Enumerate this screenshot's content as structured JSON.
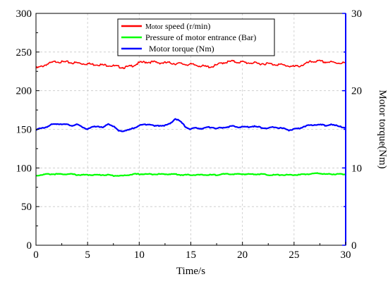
{
  "chart_data": {
    "type": "line",
    "title": "",
    "xlabel": "Time/s",
    "ylabel": "",
    "y2label": "Motor torque(Nm)",
    "xlim": [
      0,
      30
    ],
    "ylim": [
      0,
      300
    ],
    "y2lim": [
      0,
      30
    ],
    "x_ticks": [
      0,
      5,
      10,
      15,
      20,
      25,
      30
    ],
    "y_ticks": [
      0,
      50,
      100,
      150,
      200,
      250,
      300
    ],
    "y2_ticks": [
      0,
      10,
      20,
      30
    ],
    "grid": true,
    "legend_position": "top-center",
    "series": [
      {
        "legend_small": "Motor",
        "legend_main": " speed (r/min)",
        "color": "#ff0000",
        "axis": "left",
        "x": [
          0,
          0.5,
          1,
          1.5,
          2,
          2.5,
          3,
          3.5,
          4,
          4.5,
          5,
          5.5,
          6,
          6.5,
          7,
          7.5,
          8,
          8.5,
          9,
          9.5,
          10,
          10.5,
          11,
          11.5,
          12,
          12.5,
          13,
          13.5,
          14,
          14.5,
          15,
          15.5,
          16,
          16.5,
          17,
          17.5,
          18,
          18.5,
          19,
          19.5,
          20,
          20.5,
          21,
          21.5,
          22,
          22.5,
          23,
          23.5,
          24,
          24.5,
          25,
          25.5,
          26,
          26.5,
          27,
          27.5,
          28,
          28.5,
          29,
          29.5,
          30
        ],
        "values": [
          229,
          231,
          234,
          236,
          238,
          237,
          237,
          236,
          236,
          235,
          235,
          234,
          234,
          233,
          233,
          232,
          231,
          230,
          231,
          233,
          236,
          237,
          237,
          237,
          236,
          236,
          236,
          235,
          235,
          234,
          234,
          233,
          232,
          231,
          231,
          233,
          236,
          237,
          238,
          237,
          237,
          236,
          236,
          235,
          235,
          235,
          234,
          234,
          233,
          232,
          231,
          232,
          234,
          237,
          238,
          238,
          237,
          237,
          236,
          236,
          236
        ]
      },
      {
        "legend_small": "",
        "legend_main": "Pressure of motor entrance (Bar)",
        "color": "#00ff00",
        "axis": "left",
        "x": [
          0,
          0.5,
          1,
          1.5,
          2,
          2.5,
          3,
          3.5,
          4,
          4.5,
          5,
          5.5,
          6,
          6.5,
          7,
          7.5,
          8,
          8.5,
          9,
          9.5,
          10,
          10.5,
          11,
          11.5,
          12,
          12.5,
          13,
          13.5,
          14,
          14.5,
          15,
          15.5,
          16,
          16.5,
          17,
          17.5,
          18,
          18.5,
          19,
          19.5,
          20,
          20.5,
          21,
          21.5,
          22,
          22.5,
          23,
          23.5,
          24,
          24.5,
          25,
          25.5,
          26,
          26.5,
          27,
          27.5,
          28,
          28.5,
          29,
          29.5,
          30
        ],
        "values": [
          90,
          91,
          92,
          92,
          92,
          92,
          92,
          92,
          91,
          91,
          91,
          91,
          91,
          91,
          91,
          90,
          90,
          90,
          91,
          92,
          92,
          92,
          92,
          92,
          92,
          92,
          92,
          92,
          91,
          91,
          91,
          91,
          91,
          91,
          91,
          91,
          92,
          92,
          92,
          92,
          92,
          92,
          92,
          92,
          92,
          91,
          91,
          91,
          91,
          91,
          91,
          91,
          92,
          92,
          93,
          93,
          92,
          92,
          92,
          92,
          92
        ]
      },
      {
        "legend_small": "",
        "legend_main": "Motor torque (Nm)",
        "color": "#0000ff",
        "axis": "right",
        "x": [
          0,
          0.5,
          1,
          1.5,
          2,
          2.5,
          3,
          3.5,
          4,
          4.5,
          5,
          5.5,
          6,
          6.5,
          7,
          7.5,
          8,
          8.5,
          9,
          9.5,
          10,
          10.5,
          11,
          11.5,
          12,
          12.5,
          13,
          13.5,
          14,
          14.5,
          15,
          15.5,
          16,
          16.5,
          17,
          17.5,
          18,
          18.5,
          19,
          19.5,
          20,
          20.5,
          21,
          21.5,
          22,
          22.5,
          23,
          23.5,
          24,
          24.5,
          25,
          25.5,
          26,
          26.5,
          27,
          27.5,
          28,
          28.5,
          29,
          29.5,
          30
        ],
        "values": [
          15.0,
          15.1,
          15.3,
          15.6,
          15.7,
          15.7,
          15.6,
          15.5,
          15.6,
          15.3,
          15.0,
          15.3,
          15.4,
          15.2,
          15.7,
          15.4,
          14.8,
          14.8,
          14.9,
          15.2,
          15.5,
          15.6,
          15.7,
          15.4,
          15.5,
          15.5,
          15.7,
          16.4,
          16.0,
          15.3,
          15.0,
          15.2,
          15.1,
          15.2,
          15.3,
          15.1,
          15.2,
          15.3,
          15.4,
          15.3,
          15.3,
          15.3,
          15.4,
          15.3,
          15.2,
          15.1,
          15.3,
          15.2,
          15.1,
          14.9,
          15.0,
          15.1,
          15.4,
          15.5,
          15.6,
          15.6,
          15.5,
          15.6,
          15.5,
          15.4,
          15.1
        ]
      }
    ]
  }
}
